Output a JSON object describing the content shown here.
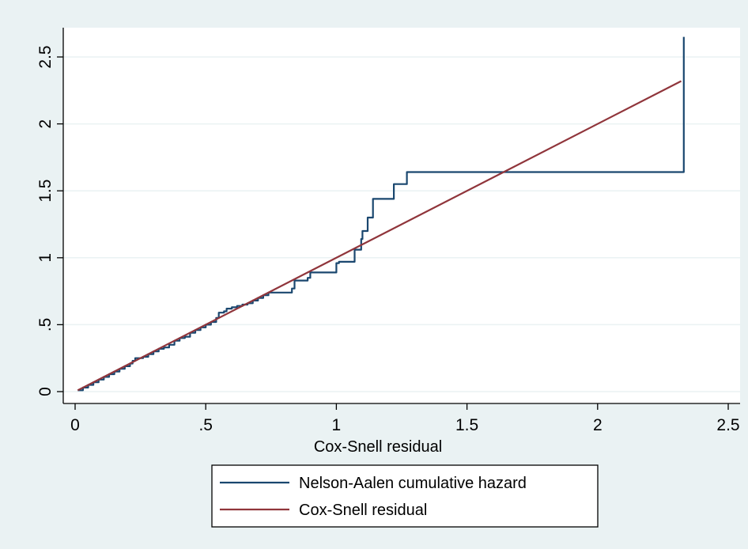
{
  "chart_data": {
    "type": "line",
    "title": "",
    "xlabel": "Cox-Snell residual",
    "ylabel": "",
    "xlim": [
      0,
      2.5
    ],
    "ylim": [
      0,
      2.5
    ],
    "x_ticks": [
      0,
      0.5,
      1,
      1.5,
      2,
      2.5
    ],
    "x_tick_labels": [
      "0",
      ".5",
      "1",
      "1.5",
      "2",
      "2.5"
    ],
    "y_ticks": [
      0,
      0.5,
      1,
      1.5,
      2,
      2.5
    ],
    "y_tick_labels": [
      "0",
      ".5",
      "1",
      "1.5",
      "2",
      "2.5"
    ],
    "grid": true,
    "legend_position": "bottom",
    "colors": {
      "outer_background": "#eaf2f3",
      "plot_background": "#ffffff",
      "grid": "#eaf2f3",
      "nelson_aalen": "#1a476f",
      "cox_snell": "#90353b"
    },
    "series": [
      {
        "name": "Nelson-Aalen cumulative hazard",
        "x": [
          0.01,
          0.03,
          0.05,
          0.07,
          0.09,
          0.11,
          0.13,
          0.15,
          0.17,
          0.19,
          0.21,
          0.22,
          0.23,
          0.24,
          0.26,
          0.28,
          0.3,
          0.32,
          0.34,
          0.36,
          0.38,
          0.4,
          0.42,
          0.44,
          0.46,
          0.48,
          0.5,
          0.52,
          0.54,
          0.55,
          0.57,
          0.58,
          0.6,
          0.62,
          0.64,
          0.66,
          0.68,
          0.7,
          0.72,
          0.74,
          0.78,
          0.81,
          0.83,
          0.84,
          0.87,
          0.89,
          0.9,
          0.95,
          1.0,
          1.01,
          1.05,
          1.07,
          1.09,
          1.095,
          1.1,
          1.12,
          1.14,
          1.16,
          1.18,
          1.22,
          1.27,
          1.4,
          2.31,
          2.32,
          2.33
        ],
        "y": [
          0.01,
          0.03,
          0.05,
          0.07,
          0.09,
          0.11,
          0.13,
          0.15,
          0.17,
          0.19,
          0.21,
          0.23,
          0.25,
          0.25,
          0.26,
          0.28,
          0.3,
          0.32,
          0.33,
          0.35,
          0.38,
          0.4,
          0.41,
          0.44,
          0.46,
          0.48,
          0.5,
          0.52,
          0.55,
          0.59,
          0.6,
          0.62,
          0.63,
          0.64,
          0.65,
          0.66,
          0.68,
          0.7,
          0.72,
          0.74,
          0.74,
          0.74,
          0.77,
          0.83,
          0.83,
          0.85,
          0.89,
          0.89,
          0.96,
          0.97,
          0.97,
          1.06,
          1.06,
          1.14,
          1.2,
          1.3,
          1.44,
          1.44,
          1.44,
          1.55,
          1.64,
          1.64,
          1.64,
          1.64,
          2.65
        ]
      },
      {
        "name": "Cox-Snell residual",
        "x": [
          0.01,
          2.32
        ],
        "y": [
          0.01,
          2.32
        ]
      }
    ]
  }
}
